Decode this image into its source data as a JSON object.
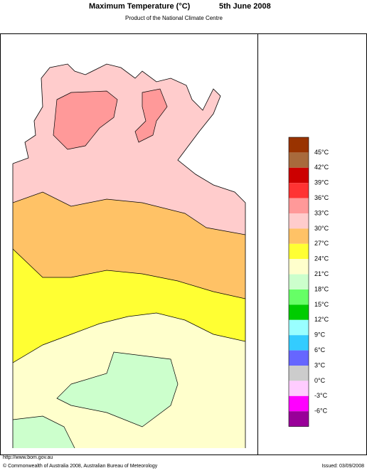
{
  "header": {
    "title": "Maximum Temperature (°C)",
    "date": "5th June 2008",
    "subtitle": "Product of the National Climate Centre"
  },
  "legend": {
    "colors": [
      "#993300",
      "#a86a3c",
      "#cc0000",
      "#ff3333",
      "#ff9999",
      "#ffcccc",
      "#ffc266",
      "#ffff33",
      "#ffffcc",
      "#ccffcc",
      "#66ff66",
      "#00cc00",
      "#99ffff",
      "#33ccff",
      "#6666ff",
      "#cccccc",
      "#ffccff",
      "#ff00ff",
      "#990099"
    ],
    "labels": [
      "45°C",
      "42°C",
      "39°C",
      "36°C",
      "33°C",
      "30°C",
      "27°C",
      "24°C",
      "21°C",
      "18°C",
      "15°C",
      "12°C",
      "9°C",
      "6°C",
      "3°C",
      "0°C",
      "-3°C",
      "-6°C"
    ]
  },
  "footer": {
    "url": "http://www.bom.gov.au",
    "copyright": "© Commonwealth of Australia 2008, Australian Bureau of Meteorology",
    "issued": "Issued: 03/09/2008"
  }
}
